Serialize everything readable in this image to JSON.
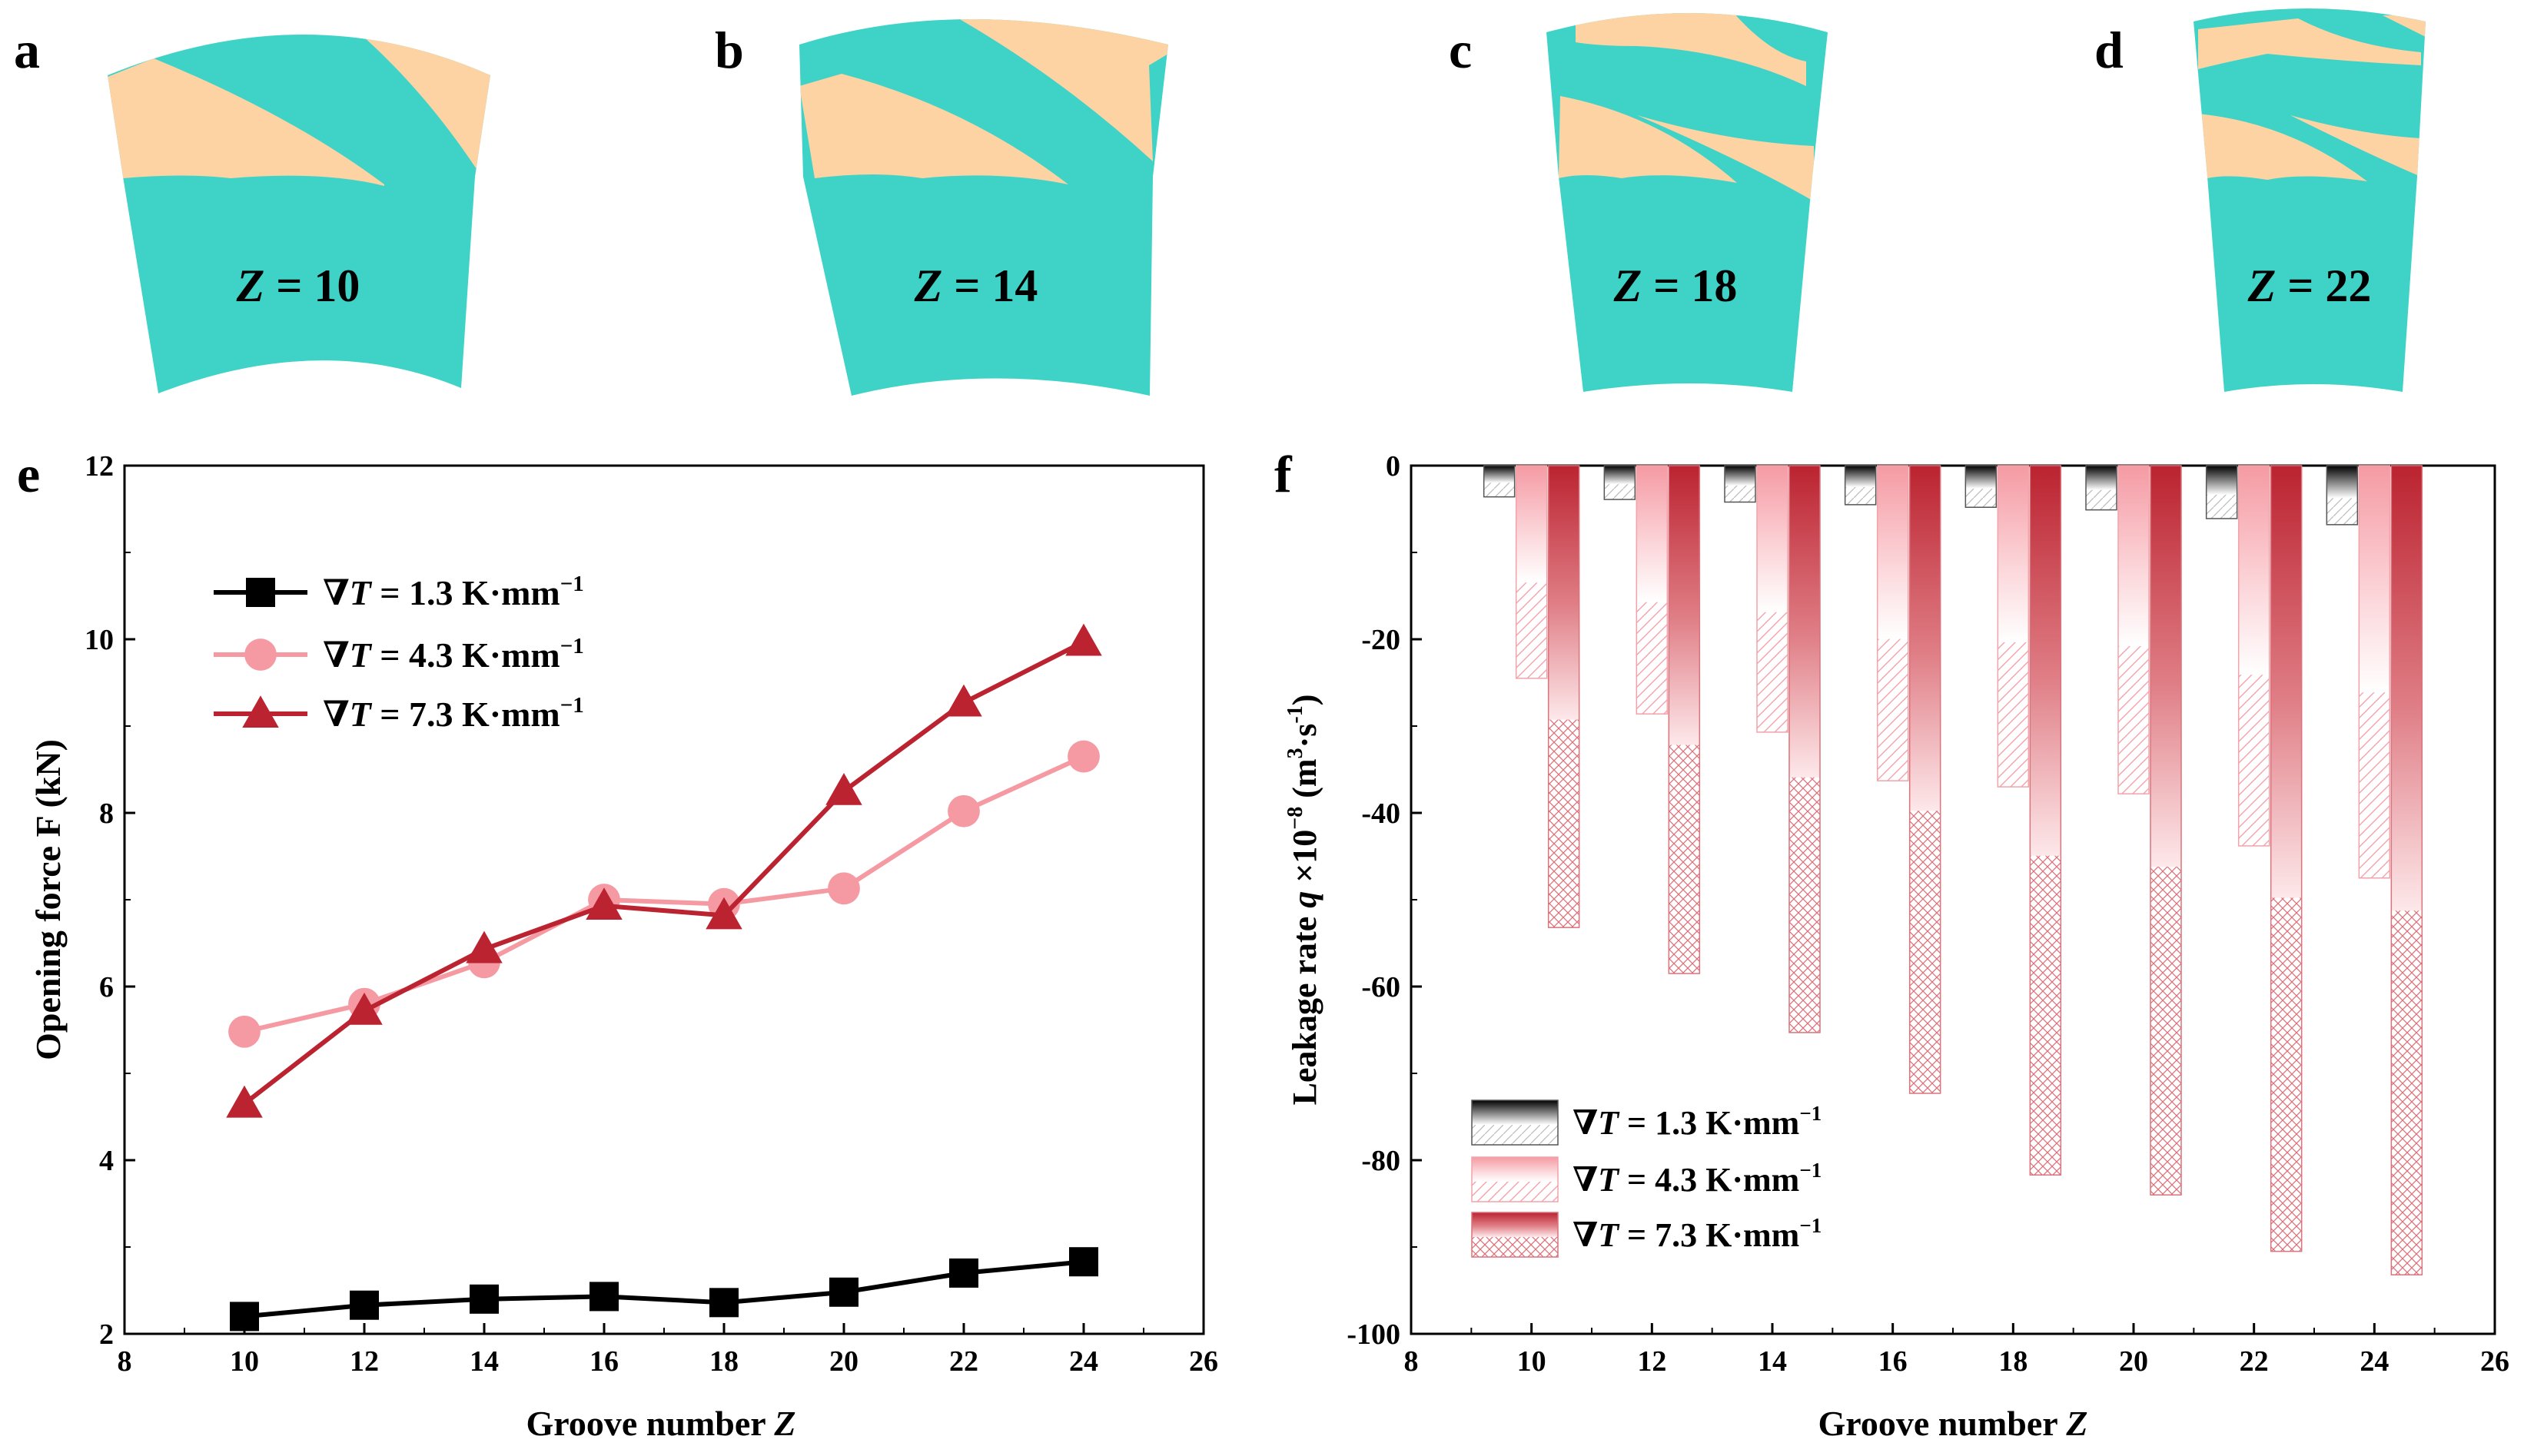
{
  "panels_top": [
    {
      "letter": "a",
      "label": "Z = 10",
      "var": "Z",
      "eq": " = 10"
    },
    {
      "letter": "b",
      "label": "Z = 14",
      "var": "Z",
      "eq": " = 14"
    },
    {
      "letter": "c",
      "label": "Z = 18",
      "var": "Z",
      "eq": " = 18"
    },
    {
      "letter": "d",
      "label": "Z = 22",
      "var": "Z",
      "eq": " = 22"
    }
  ],
  "colors": {
    "teal": "#3fd3c8",
    "peach": "#fdd3a4",
    "black": "#000000",
    "pink": "#f59aa3",
    "red": "#bb2330"
  },
  "chart_data": [
    {
      "panel": "e",
      "type": "line",
      "xlabel": "Groove number Z",
      "xlabel_main": "Groove number ",
      "xlabel_var": "Z",
      "ylabel": "Opening force F (kN)",
      "xlim": [
        8,
        26
      ],
      "ylim": [
        2,
        12
      ],
      "xticks": [
        8,
        10,
        12,
        14,
        16,
        18,
        20,
        22,
        24,
        26
      ],
      "yticks": [
        2,
        4,
        6,
        8,
        10,
        12
      ],
      "x": [
        10,
        12,
        14,
        16,
        18,
        20,
        22,
        24
      ],
      "legend_position": "upper-left",
      "series": [
        {
          "name": "∇T = 1.3 K·mm−1",
          "name_pre": "∇",
          "name_var": "T",
          "name_mid": " = 1.3 K·mm",
          "name_sup": "−1",
          "marker": "square",
          "color": "#000000",
          "values": [
            2.2,
            2.33,
            2.4,
            2.43,
            2.36,
            2.48,
            2.7,
            2.83
          ]
        },
        {
          "name": "∇T = 4.3 K·mm−1",
          "name_pre": "∇",
          "name_var": "T",
          "name_mid": " = 4.3 K·mm",
          "name_sup": "−1",
          "marker": "circle",
          "color": "#f59aa3",
          "values": [
            5.48,
            5.8,
            6.28,
            7.0,
            6.95,
            7.13,
            8.02,
            8.65
          ]
        },
        {
          "name": "∇T = 7.3 K·mm−1",
          "name_pre": "∇",
          "name_var": "T",
          "name_mid": " = 7.3 K·mm",
          "name_sup": "−1",
          "marker": "triangle",
          "color": "#bb2330",
          "values": [
            4.65,
            5.72,
            6.43,
            6.93,
            6.82,
            8.25,
            9.27,
            9.97
          ]
        }
      ]
    },
    {
      "panel": "f",
      "type": "bar",
      "xlabel": "Groove number Z",
      "xlabel_main": "Groove number ",
      "xlabel_var": "Z",
      "ylabel": "Leakage rate q ×10−8 (m3·s−1)",
      "ylabel_a": "Leakage rate ",
      "ylabel_var": "q",
      "ylabel_b": " ×10",
      "ylabel_sup1": "−8",
      "ylabel_c": " (m",
      "ylabel_sup2": "3",
      "ylabel_d": "·s",
      "ylabel_sup3": "-1",
      "ylabel_e": ")",
      "xlim": [
        8,
        26
      ],
      "ylim": [
        -100,
        0
      ],
      "xticks": [
        8,
        10,
        12,
        14,
        16,
        18,
        20,
        22,
        24,
        26
      ],
      "yticks": [
        0,
        -20,
        -40,
        -60,
        -80,
        -100
      ],
      "categories": [
        10,
        12,
        14,
        16,
        18,
        20,
        22,
        24
      ],
      "legend_position": "lower-left",
      "series": [
        {
          "name": "∇T = 1.3 K·mm−1",
          "name_pre": "∇",
          "name_var": "T",
          "name_mid": " = 1.3 K·mm",
          "name_sup": "−1",
          "color": "#000000",
          "values": [
            -3.6,
            -3.9,
            -4.2,
            -4.5,
            -4.8,
            -5.1,
            -6.1,
            -6.8
          ]
        },
        {
          "name": "∇T = 4.3 K·mm−1",
          "name_pre": "∇",
          "name_var": "T",
          "name_mid": " = 4.3 K·mm",
          "name_sup": "−1",
          "color": "#f59aa3",
          "values": [
            -24.5,
            -28.6,
            -30.7,
            -36.3,
            -37.0,
            -37.8,
            -43.8,
            -47.5
          ]
        },
        {
          "name": "∇T = 7.3 K·mm−1",
          "name_pre": "∇",
          "name_var": "T",
          "name_mid": " = 7.3 K·mm",
          "name_sup": "−1",
          "color": "#bb2330",
          "values": [
            -53.2,
            -58.5,
            -65.3,
            -72.3,
            -81.7,
            -84.0,
            -90.5,
            -93.2
          ]
        }
      ]
    }
  ]
}
